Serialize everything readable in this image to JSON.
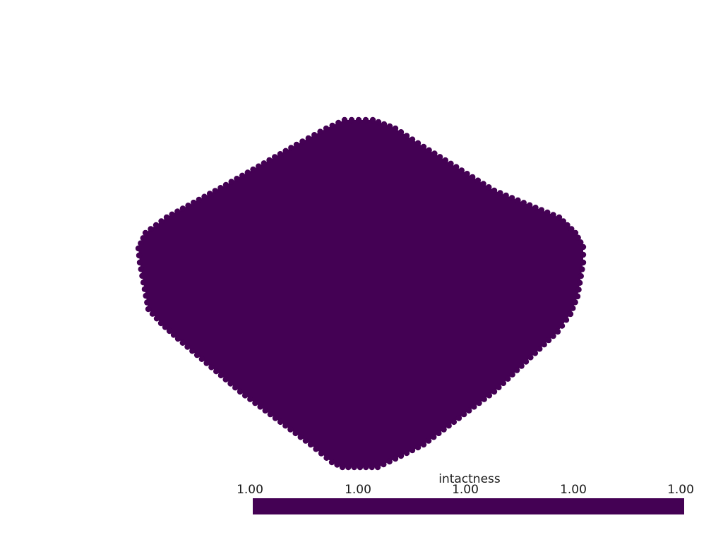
{
  "scene": {
    "background_color": "#ffffff",
    "mesh_color": "#440154"
  },
  "scalar_bar": {
    "title": "intactness",
    "ticks": [
      "1.00",
      "1.00",
      "1.00",
      "1.00",
      "1.00"
    ],
    "colormap": "viridis",
    "range": [
      1.0,
      1.0
    ],
    "color": "#440154"
  }
}
